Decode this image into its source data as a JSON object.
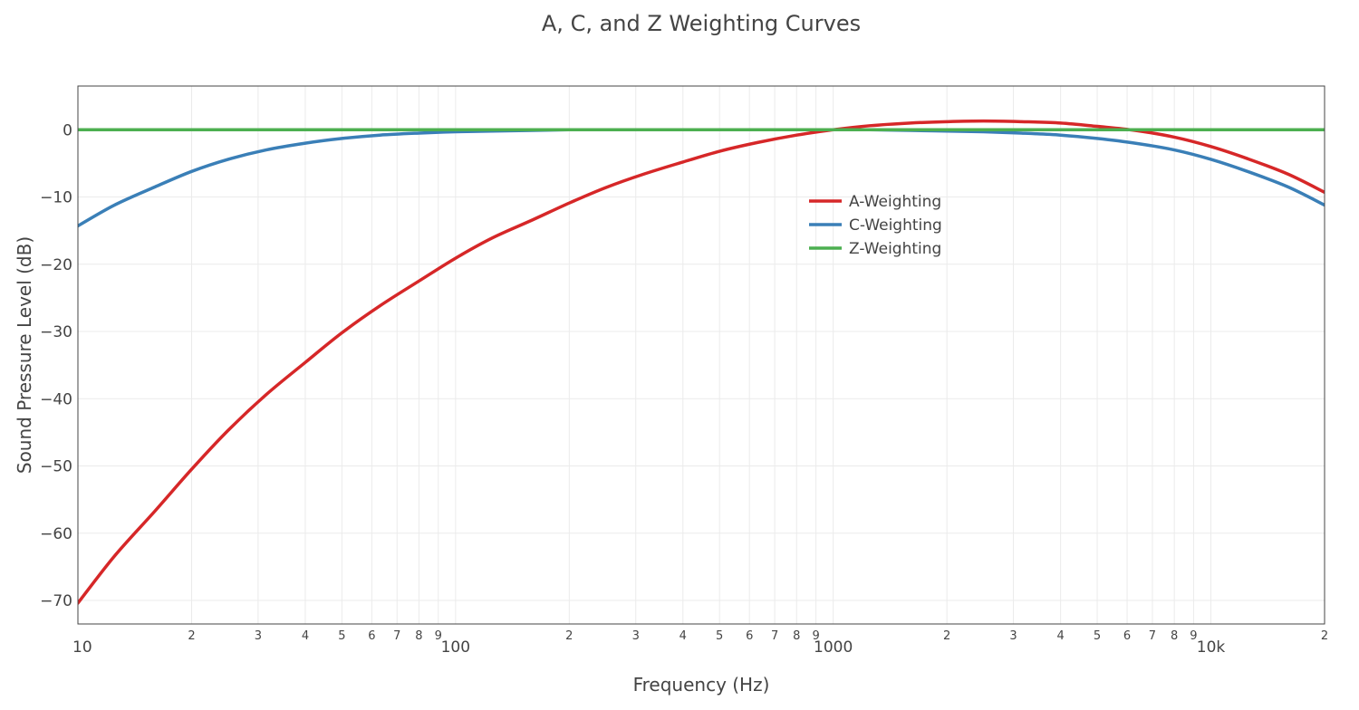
{
  "chart_data": {
    "type": "line",
    "title": "A, C, and Z Weighting Curves",
    "xlabel": "Frequency (Hz)",
    "ylabel": "Sound Pressure Level (dB)",
    "x_scale": "log",
    "xlim": [
      10,
      20000
    ],
    "ylim": [
      -73.5,
      6.5
    ],
    "grid": true,
    "legend_position": "upper-middle-right",
    "y_ticks": [
      {
        "value": 0,
        "label": "0"
      },
      {
        "value": -10,
        "label": "−10"
      },
      {
        "value": -20,
        "label": "−20"
      },
      {
        "value": -30,
        "label": "−30"
      },
      {
        "value": -40,
        "label": "−40"
      },
      {
        "value": -50,
        "label": "−50"
      },
      {
        "value": -60,
        "label": "−60"
      },
      {
        "value": -70,
        "label": "−70"
      }
    ],
    "x_ticks": [
      {
        "value": 10,
        "label": "10",
        "major": true
      },
      {
        "value": 20,
        "label": "2",
        "major": false
      },
      {
        "value": 30,
        "label": "3",
        "major": false
      },
      {
        "value": 40,
        "label": "4",
        "major": false
      },
      {
        "value": 50,
        "label": "5",
        "major": false
      },
      {
        "value": 60,
        "label": "6",
        "major": false
      },
      {
        "value": 70,
        "label": "7",
        "major": false
      },
      {
        "value": 80,
        "label": "8",
        "major": false
      },
      {
        "value": 90,
        "label": "9",
        "major": false
      },
      {
        "value": 100,
        "label": "100",
        "major": true
      },
      {
        "value": 200,
        "label": "2",
        "major": false
      },
      {
        "value": 300,
        "label": "3",
        "major": false
      },
      {
        "value": 400,
        "label": "4",
        "major": false
      },
      {
        "value": 500,
        "label": "5",
        "major": false
      },
      {
        "value": 600,
        "label": "6",
        "major": false
      },
      {
        "value": 700,
        "label": "7",
        "major": false
      },
      {
        "value": 800,
        "label": "8",
        "major": false
      },
      {
        "value": 900,
        "label": "9",
        "major": false
      },
      {
        "value": 1000,
        "label": "1000",
        "major": true
      },
      {
        "value": 2000,
        "label": "2",
        "major": false
      },
      {
        "value": 3000,
        "label": "3",
        "major": false
      },
      {
        "value": 4000,
        "label": "4",
        "major": false
      },
      {
        "value": 5000,
        "label": "5",
        "major": false
      },
      {
        "value": 6000,
        "label": "6",
        "major": false
      },
      {
        "value": 7000,
        "label": "7",
        "major": false
      },
      {
        "value": 8000,
        "label": "8",
        "major": false
      },
      {
        "value": 9000,
        "label": "9",
        "major": false
      },
      {
        "value": 10000,
        "label": "10k",
        "major": true
      },
      {
        "value": 20000,
        "label": "2",
        "major": false
      }
    ],
    "x": [
      10,
      12.5,
      16,
      20,
      25,
      31.5,
      40,
      50,
      63,
      80,
      100,
      125,
      160,
      200,
      250,
      315,
      400,
      500,
      630,
      800,
      1000,
      1250,
      1600,
      2000,
      2500,
      3150,
      4000,
      5000,
      6300,
      8000,
      10000,
      12500,
      16000,
      20000
    ],
    "series": [
      {
        "name": "A-Weighting",
        "color": "#d62728",
        "values": [
          -70.4,
          -63.4,
          -56.7,
          -50.5,
          -44.7,
          -39.4,
          -34.6,
          -30.2,
          -26.2,
          -22.5,
          -19.1,
          -16.1,
          -13.4,
          -10.9,
          -8.6,
          -6.6,
          -4.8,
          -3.2,
          -1.9,
          -0.8,
          0.0,
          0.6,
          1.0,
          1.2,
          1.3,
          1.2,
          1.0,
          0.5,
          -0.1,
          -1.1,
          -2.5,
          -4.3,
          -6.6,
          -9.3
        ]
      },
      {
        "name": "C-Weighting",
        "color": "#3a7fb7",
        "values": [
          -14.3,
          -11.2,
          -8.5,
          -6.2,
          -4.4,
          -3.0,
          -2.0,
          -1.3,
          -0.8,
          -0.5,
          -0.3,
          -0.2,
          -0.1,
          0.0,
          0.0,
          0.0,
          0.0,
          0.0,
          0.0,
          0.0,
          0.0,
          0.0,
          -0.1,
          -0.2,
          -0.3,
          -0.5,
          -0.8,
          -1.3,
          -2.0,
          -3.0,
          -4.4,
          -6.2,
          -8.5,
          -11.2
        ]
      },
      {
        "name": "Z-Weighting",
        "color": "#4caf50",
        "values": [
          0,
          0,
          0,
          0,
          0,
          0,
          0,
          0,
          0,
          0,
          0,
          0,
          0,
          0,
          0,
          0,
          0,
          0,
          0,
          0,
          0,
          0,
          0,
          0,
          0,
          0,
          0,
          0,
          0,
          0,
          0,
          0,
          0,
          0
        ]
      }
    ]
  }
}
